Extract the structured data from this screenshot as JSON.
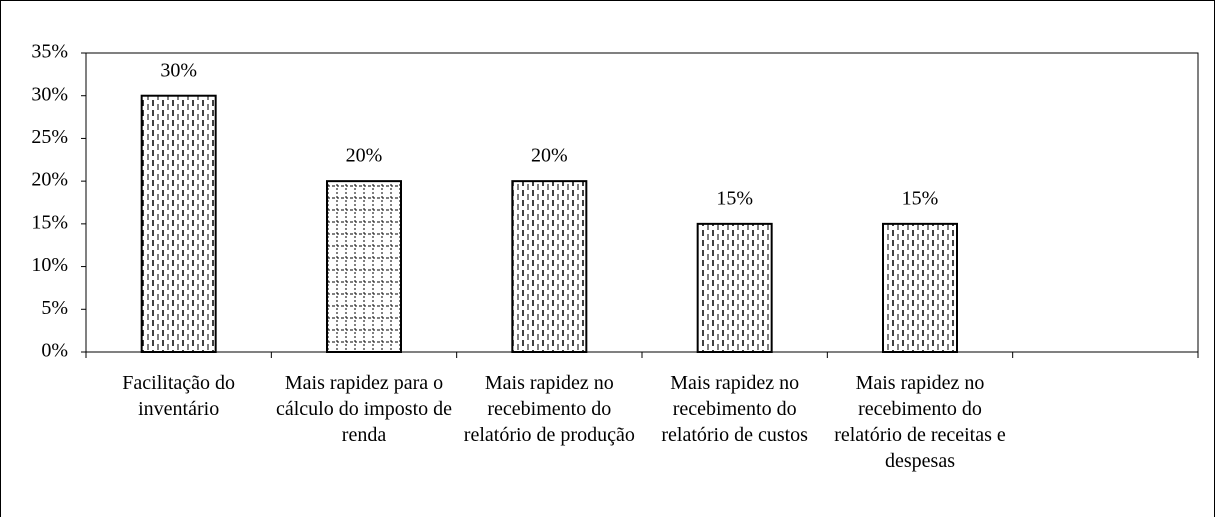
{
  "chart_data": {
    "type": "bar",
    "categories": [
      "Facilitação do inventário",
      "Mais rapidez para o cálculo do imposto de renda",
      "Mais rapidez no recebimento do relatório de produção",
      "Mais rapidez no recebimento do relatório de custos",
      "Mais rapidez no recebimento do relatório de receitas e despesas",
      null
    ],
    "values": [
      30,
      20,
      20,
      15,
      15,
      null
    ],
    "value_labels": [
      "30%",
      "20%",
      "20%",
      "15%",
      "15%",
      null
    ],
    "color": "#000000",
    "bar_patterns": [
      "dashed-vertical",
      "grid",
      "dashed-vertical",
      "dashed-vertical",
      "dashed-vertical",
      null
    ],
    "ylim": [
      0,
      35
    ],
    "yticks": [
      {
        "value": 0,
        "label": "0%"
      },
      {
        "value": 5,
        "label": "5%"
      },
      {
        "value": 10,
        "label": "10%"
      },
      {
        "value": 15,
        "label": "15%"
      },
      {
        "value": 20,
        "label": "20%"
      },
      {
        "value": 25,
        "label": "25%"
      },
      {
        "value": 30,
        "label": "30%"
      },
      {
        "value": 35,
        "label": "35%"
      }
    ],
    "grid": false
  }
}
